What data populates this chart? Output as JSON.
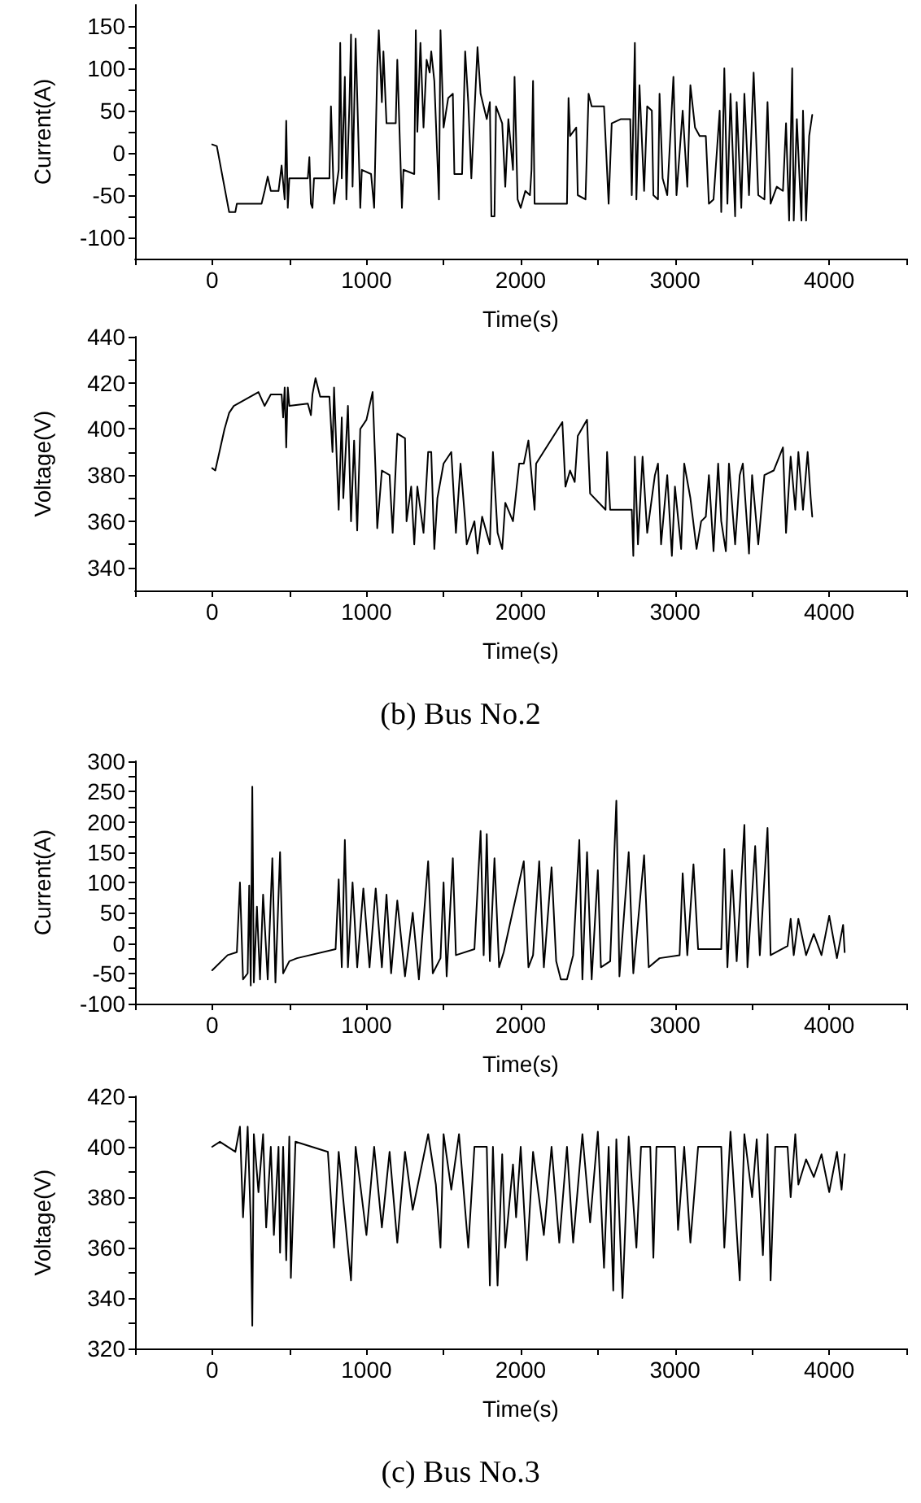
{
  "chart_data": [
    {
      "type": "line",
      "ylabel": "Current(A)",
      "xlabel": "Time(s)",
      "color": "#000000",
      "xlim": [
        -500,
        4500
      ],
      "xticks": [
        {
          "value": -500,
          "label": null
        },
        0,
        {
          "value": 500,
          "label": null
        },
        1000,
        {
          "value": 1500,
          "label": null
        },
        2000,
        {
          "value": 2500,
          "label": null
        },
        3000,
        {
          "value": 3500,
          "label": null
        },
        4000,
        {
          "value": 4500,
          "label": null
        }
      ],
      "ylim": [
        -125,
        175
      ],
      "yticks": [
        -100,
        {
          "value": -75,
          "label": null
        },
        -50,
        {
          "value": -25,
          "label": null
        },
        0,
        {
          "value": 25,
          "label": null
        },
        50,
        {
          "value": 75,
          "label": null
        },
        100,
        {
          "value": 125,
          "label": null
        },
        150
      ],
      "x": [
        0,
        30,
        110,
        150,
        160,
        320,
        340,
        360,
        380,
        430,
        450,
        470,
        480,
        490,
        500,
        620,
        630,
        640,
        650,
        660,
        760,
        770,
        790,
        820,
        830,
        840,
        860,
        870,
        890,
        900,
        910,
        930,
        960,
        970,
        1030,
        1050,
        1070,
        1080,
        1100,
        1110,
        1130,
        1190,
        1200,
        1230,
        1240,
        1310,
        1320,
        1330,
        1350,
        1370,
        1390,
        1410,
        1420,
        1440,
        1470,
        1480,
        1500,
        1530,
        1560,
        1570,
        1620,
        1640,
        1660,
        1680,
        1720,
        1740,
        1780,
        1800,
        1810,
        1830,
        1840,
        1880,
        1900,
        1920,
        1950,
        1960,
        1980,
        2000,
        2030,
        2060,
        2070,
        2080,
        2090,
        2300,
        2310,
        2320,
        2360,
        2370,
        2420,
        2440,
        2460,
        2540,
        2570,
        2590,
        2650,
        2710,
        2720,
        2740,
        2750,
        2770,
        2800,
        2820,
        2850,
        2860,
        2890,
        2900,
        2920,
        2950,
        2990,
        3010,
        3050,
        3080,
        3100,
        3130,
        3160,
        3200,
        3220,
        3250,
        3290,
        3300,
        3320,
        3340,
        3360,
        3390,
        3400,
        3430,
        3450,
        3480,
        3510,
        3540,
        3580,
        3600,
        3620,
        3660,
        3700,
        3720,
        3740,
        3760,
        3770,
        3790,
        3820,
        3830,
        3850,
        3870,
        3890
      ],
      "values": [
        10,
        8,
        -70,
        -70,
        -60,
        -60,
        -45,
        -28,
        -45,
        -45,
        -15,
        -55,
        38,
        -65,
        -30,
        -30,
        -5,
        -60,
        -65,
        -30,
        -30,
        55,
        -60,
        -20,
        130,
        -30,
        90,
        -55,
        60,
        140,
        -40,
        135,
        -65,
        -20,
        -25,
        -65,
        100,
        145,
        60,
        120,
        35,
        35,
        110,
        -65,
        -20,
        -25,
        145,
        25,
        130,
        30,
        110,
        95,
        120,
        85,
        -55,
        145,
        30,
        65,
        70,
        -25,
        -25,
        120,
        60,
        -30,
        125,
        70,
        40,
        60,
        -75,
        -75,
        55,
        35,
        -40,
        40,
        -20,
        90,
        -55,
        -65,
        -45,
        -50,
        -20,
        85,
        -60,
        -60,
        65,
        20,
        30,
        -50,
        -55,
        70,
        55,
        55,
        -60,
        35,
        40,
        40,
        -50,
        130,
        -55,
        80,
        -45,
        55,
        50,
        -50,
        -55,
        70,
        -30,
        -50,
        90,
        -50,
        50,
        -40,
        80,
        30,
        20,
        20,
        -60,
        -55,
        50,
        -70,
        100,
        -60,
        70,
        -75,
        60,
        -65,
        70,
        -50,
        95,
        -50,
        -55,
        60,
        -60,
        -40,
        -45,
        35,
        -80,
        100,
        -80,
        40,
        -80,
        50,
        -80,
        20,
        45
      ]
    },
    {
      "type": "line",
      "ylabel": "Voltage(V)",
      "xlabel": "Time(s)",
      "annotations": [
        "(b) Bus No.2"
      ],
      "color": "#000000",
      "xlim": [
        -500,
        4500
      ],
      "xticks": [
        {
          "value": -500,
          "label": null
        },
        0,
        {
          "value": 500,
          "label": null
        },
        1000,
        {
          "value": 1500,
          "label": null
        },
        2000,
        {
          "value": 2500,
          "label": null
        },
        3000,
        {
          "value": 3500,
          "label": null
        },
        4000,
        {
          "value": 4500,
          "label": null
        }
      ],
      "ylim": [
        330,
        440
      ],
      "yticks": [
        340,
        {
          "value": 350,
          "label": null
        },
        360,
        {
          "value": 370,
          "label": null
        },
        380,
        {
          "value": 390,
          "label": null
        },
        400,
        {
          "value": 410,
          "label": null
        },
        420,
        {
          "value": 430,
          "label": null
        },
        440
      ],
      "x": [
        0,
        20,
        80,
        110,
        140,
        300,
        340,
        380,
        450,
        460,
        470,
        480,
        490,
        500,
        620,
        640,
        650,
        670,
        700,
        760,
        780,
        790,
        820,
        840,
        850,
        880,
        900,
        920,
        940,
        960,
        1000,
        1040,
        1060,
        1070,
        1100,
        1150,
        1170,
        1200,
        1250,
        1260,
        1290,
        1310,
        1330,
        1370,
        1400,
        1420,
        1440,
        1460,
        1500,
        1550,
        1580,
        1610,
        1640,
        1650,
        1700,
        1720,
        1750,
        1800,
        1820,
        1850,
        1880,
        1900,
        1950,
        1990,
        2020,
        2050,
        2090,
        2100,
        2270,
        2290,
        2320,
        2350,
        2370,
        2430,
        2450,
        2550,
        2560,
        2580,
        2720,
        2730,
        2740,
        2760,
        2790,
        2820,
        2870,
        2890,
        2910,
        2950,
        2980,
        3000,
        3040,
        3060,
        3100,
        3140,
        3170,
        3200,
        3220,
        3250,
        3280,
        3300,
        3330,
        3350,
        3390,
        3420,
        3440,
        3480,
        3500,
        3540,
        3580,
        3640,
        3700,
        3720,
        3750,
        3780,
        3800,
        3830,
        3860,
        3880,
        3890
      ],
      "values": [
        383,
        382,
        400,
        407,
        410,
        416,
        410,
        415,
        415,
        405,
        418,
        392,
        418,
        410,
        411,
        406,
        415,
        422,
        414,
        414,
        390,
        418,
        365,
        405,
        370,
        410,
        360,
        395,
        356,
        400,
        404,
        416,
        380,
        357,
        382,
        380,
        355,
        398,
        396,
        360,
        375,
        350,
        375,
        355,
        390,
        390,
        348,
        370,
        385,
        390,
        355,
        385,
        360,
        350,
        360,
        346,
        362,
        350,
        390,
        355,
        348,
        368,
        360,
        385,
        385,
        395,
        365,
        385,
        403,
        375,
        382,
        377,
        397,
        404,
        372,
        365,
        390,
        365,
        365,
        345,
        388,
        350,
        388,
        355,
        380,
        385,
        350,
        380,
        345,
        375,
        348,
        385,
        370,
        348,
        360,
        362,
        380,
        347,
        385,
        360,
        347,
        385,
        350,
        380,
        385,
        346,
        380,
        350,
        380,
        382,
        392,
        355,
        388,
        365,
        390,
        365,
        390,
        370,
        362
      ]
    },
    {
      "type": "line",
      "ylabel": "Current(A)",
      "xlabel": "Time(s)",
      "color": "#000000",
      "xlim": [
        -500,
        4500
      ],
      "xticks": [
        {
          "value": -500,
          "label": null
        },
        0,
        {
          "value": 500,
          "label": null
        },
        1000,
        {
          "value": 1500,
          "label": null
        },
        2000,
        {
          "value": 2500,
          "label": null
        },
        3000,
        {
          "value": 3500,
          "label": null
        },
        4000,
        {
          "value": 4500,
          "label": null
        }
      ],
      "ylim": [
        -100,
        300
      ],
      "yticks": [
        -100,
        {
          "value": -75,
          "label": null
        },
        -50,
        {
          "value": -25,
          "label": null
        },
        0,
        {
          "value": 25,
          "label": null
        },
        50,
        {
          "value": 75,
          "label": null
        },
        100,
        {
          "value": 125,
          "label": null
        },
        150,
        {
          "value": 175,
          "label": null
        },
        200,
        {
          "value": 225,
          "label": null
        },
        250,
        {
          "value": 275,
          "label": null
        },
        300
      ],
      "x": [
        0,
        100,
        160,
        180,
        200,
        230,
        240,
        250,
        260,
        270,
        290,
        310,
        330,
        360,
        390,
        410,
        440,
        460,
        500,
        550,
        800,
        820,
        840,
        860,
        880,
        910,
        940,
        980,
        1020,
        1060,
        1100,
        1130,
        1160,
        1200,
        1250,
        1300,
        1340,
        1400,
        1430,
        1480,
        1500,
        1520,
        1560,
        1580,
        1700,
        1740,
        1760,
        1780,
        1800,
        1830,
        1860,
        1890,
        2020,
        2050,
        2080,
        2120,
        2150,
        2200,
        2230,
        2260,
        2300,
        2340,
        2380,
        2400,
        2430,
        2460,
        2500,
        2520,
        2580,
        2620,
        2640,
        2700,
        2730,
        2800,
        2830,
        2900,
        3030,
        3050,
        3080,
        3120,
        3150,
        3300,
        3320,
        3340,
        3370,
        3400,
        3450,
        3470,
        3520,
        3550,
        3600,
        3620,
        3730,
        3750,
        3770,
        3800,
        3850,
        3900,
        3950,
        4000,
        4050,
        4090,
        4100
      ],
      "values": [
        -45,
        -20,
        -15,
        100,
        -60,
        -50,
        95,
        -70,
        258,
        -65,
        60,
        -60,
        80,
        -60,
        140,
        -65,
        150,
        -50,
        -30,
        -25,
        -10,
        105,
        -40,
        170,
        -40,
        100,
        -40,
        90,
        -40,
        90,
        -40,
        80,
        -50,
        70,
        -55,
        50,
        -60,
        135,
        -50,
        -25,
        100,
        -55,
        140,
        -20,
        -10,
        185,
        -20,
        180,
        -30,
        140,
        -40,
        -15,
        135,
        -40,
        -20,
        135,
        -40,
        125,
        -30,
        -60,
        -60,
        -20,
        170,
        -60,
        150,
        -60,
        120,
        -40,
        -30,
        235,
        -55,
        150,
        -50,
        145,
        -40,
        -25,
        -20,
        115,
        -20,
        130,
        -10,
        -10,
        155,
        -40,
        120,
        -30,
        195,
        -40,
        160,
        -20,
        190,
        -20,
        -5,
        40,
        -20,
        40,
        -20,
        15,
        -20,
        45,
        -25,
        30,
        -15
      ]
    },
    {
      "type": "line",
      "ylabel": "Voltage(V)",
      "xlabel": "Time(s)",
      "annotations": [
        "(c) Bus No.3"
      ],
      "color": "#000000",
      "xlim": [
        -500,
        4500
      ],
      "xticks": [
        {
          "value": -500,
          "label": null
        },
        0,
        {
          "value": 500,
          "label": null
        },
        1000,
        {
          "value": 1500,
          "label": null
        },
        2000,
        {
          "value": 2500,
          "label": null
        },
        3000,
        {
          "value": 3500,
          "label": null
        },
        4000,
        {
          "value": 4500,
          "label": null
        }
      ],
      "ylim": [
        320,
        420
      ],
      "yticks": [
        320,
        {
          "value": 330,
          "label": null
        },
        340,
        {
          "value": 350,
          "label": null
        },
        360,
        {
          "value": 370,
          "label": null
        },
        380,
        {
          "value": 390,
          "label": null
        },
        400,
        {
          "value": 410,
          "label": null
        },
        420
      ],
      "x": [
        0,
        50,
        150,
        180,
        200,
        230,
        250,
        260,
        270,
        300,
        330,
        350,
        380,
        400,
        430,
        440,
        460,
        480,
        500,
        510,
        540,
        750,
        790,
        820,
        900,
        930,
        1000,
        1050,
        1100,
        1150,
        1200,
        1250,
        1300,
        1400,
        1450,
        1480,
        1500,
        1550,
        1600,
        1660,
        1700,
        1780,
        1800,
        1820,
        1850,
        1880,
        1900,
        1950,
        1970,
        2000,
        2040,
        2080,
        2150,
        2200,
        2250,
        2300,
        2340,
        2400,
        2450,
        2500,
        2540,
        2570,
        2600,
        2620,
        2660,
        2700,
        2750,
        2780,
        2840,
        2860,
        2880,
        3000,
        3020,
        3060,
        3100,
        3150,
        3300,
        3320,
        3360,
        3420,
        3450,
        3500,
        3530,
        3570,
        3600,
        3620,
        3650,
        3730,
        3750,
        3780,
        3800,
        3850,
        3900,
        3950,
        4000,
        4050,
        4080,
        4100
      ],
      "values": [
        400,
        402,
        398,
        408,
        372,
        408,
        370,
        329,
        405,
        382,
        405,
        368,
        400,
        365,
        400,
        358,
        400,
        355,
        404,
        348,
        402,
        398,
        360,
        398,
        347,
        400,
        365,
        400,
        368,
        398,
        362,
        398,
        375,
        405,
        385,
        360,
        405,
        383,
        405,
        360,
        400,
        400,
        345,
        400,
        345,
        397,
        360,
        393,
        372,
        400,
        355,
        398,
        365,
        400,
        362,
        400,
        362,
        405,
        370,
        406,
        352,
        400,
        343,
        403,
        340,
        404,
        360,
        400,
        400,
        356,
        400,
        400,
        367,
        400,
        362,
        400,
        400,
        360,
        406,
        347,
        405,
        380,
        403,
        357,
        405,
        347,
        400,
        400,
        380,
        405,
        385,
        395,
        388,
        397,
        382,
        398,
        383,
        397
      ]
    }
  ]
}
